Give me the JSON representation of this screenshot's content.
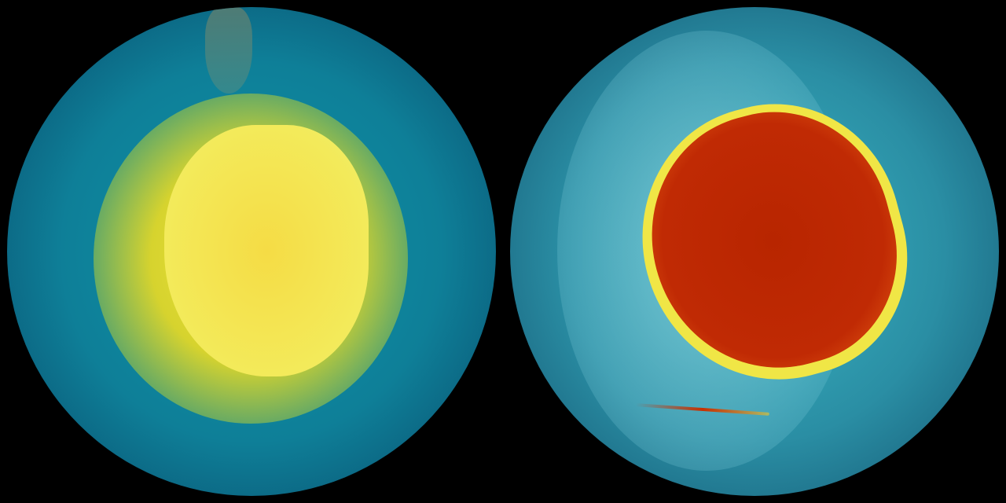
{
  "images": [
    {
      "subject": "globe-left",
      "colors": {
        "ocean": "#0f94a8",
        "halo": "#e6d72c",
        "center": "#f5dc45"
      }
    },
    {
      "subject": "globe-right",
      "colors": {
        "ocean": "#3bb7c4",
        "ring": "#f0e646",
        "center": "#b82500"
      }
    }
  ]
}
